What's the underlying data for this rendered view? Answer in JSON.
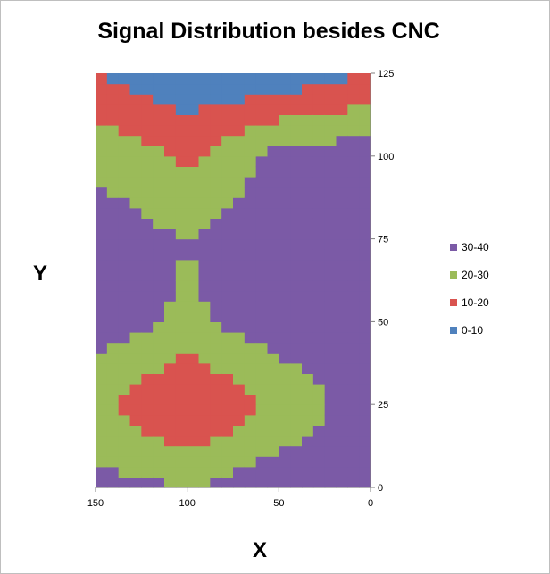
{
  "chart_data": {
    "type": "surface-contour",
    "title": "Signal Distribution besides CNC",
    "xlabel": "X",
    "ylabel": "Y",
    "x_axis": {
      "reversed": true,
      "min": 0,
      "max": 150,
      "ticks": [
        "150",
        "100",
        "50",
        "0"
      ]
    },
    "y_axis": {
      "position": "right",
      "min": 0,
      "max": 125,
      "ticks": [
        "0",
        "25",
        "50",
        "75",
        "100",
        "125"
      ]
    },
    "legend_position": "right",
    "grid": false,
    "bands": [
      {
        "name": "30-40",
        "range": [
          30,
          40
        ],
        "color": "#7b5aa6"
      },
      {
        "name": "20-30",
        "range": [
          20,
          30
        ],
        "color": "#9bbb59"
      },
      {
        "name": "10-20",
        "range": [
          10,
          20
        ],
        "color": "#d9534f"
      },
      {
        "name": "0-10",
        "range": [
          0,
          10
        ],
        "color": "#4f81bd"
      }
    ],
    "x": [
      150,
      100,
      50,
      0
    ],
    "y": [
      0,
      25,
      50,
      75,
      100,
      125
    ],
    "z": [
      [
        34,
        30,
        36,
        40
      ],
      [
        22,
        8,
        22,
        36
      ],
      [
        36,
        28,
        36,
        40
      ],
      [
        36,
        30,
        36,
        40
      ],
      [
        28,
        18,
        34,
        36
      ],
      [
        10,
        2,
        2,
        10
      ]
    ]
  }
}
